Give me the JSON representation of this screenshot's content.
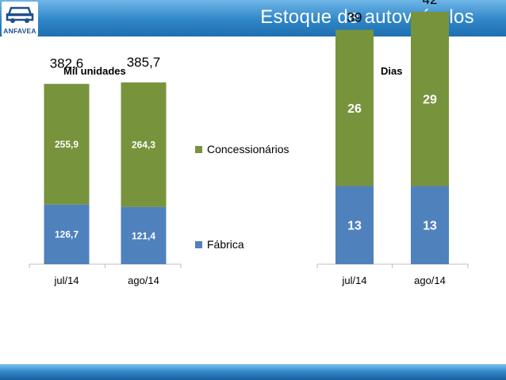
{
  "header": {
    "title": "Estoque de autoveículos",
    "logo_text": "ANFAVEA"
  },
  "legend": [
    {
      "label": "Concessionários",
      "color": "#77933c"
    },
    {
      "label": "Fábrica",
      "color": "#4f81bd"
    }
  ],
  "chart_data": [
    {
      "type": "bar",
      "stacked": true,
      "title": "Mil unidades",
      "categories": [
        "jul/14",
        "ago/14"
      ],
      "series": [
        {
          "name": "Fábrica",
          "values": [
            126.7,
            121.4
          ],
          "labels": [
            "126,7",
            "121,4"
          ],
          "color": "#4f81bd"
        },
        {
          "name": "Concessionários",
          "values": [
            255.9,
            264.3
          ],
          "labels": [
            "255,9",
            "264,3"
          ],
          "color": "#77933c"
        }
      ],
      "totals": [
        "382,6",
        "385,7"
      ],
      "totals_values": [
        382.6,
        385.7
      ],
      "ylim": [
        0,
        500
      ],
      "grid": false
    },
    {
      "type": "bar",
      "stacked": true,
      "title": "Dias",
      "categories": [
        "jul/14",
        "ago/14"
      ],
      "series": [
        {
          "name": "Fábrica",
          "values": [
            13,
            13
          ],
          "labels": [
            "13",
            "13"
          ],
          "color": "#4f81bd"
        },
        {
          "name": "Concessionários",
          "values": [
            26,
            29
          ],
          "labels": [
            "26",
            "29"
          ],
          "color": "#77933c"
        }
      ],
      "totals": [
        "39",
        "42"
      ],
      "totals_values": [
        39,
        42
      ],
      "ylim": [
        0,
        47
      ],
      "grid": false
    }
  ]
}
